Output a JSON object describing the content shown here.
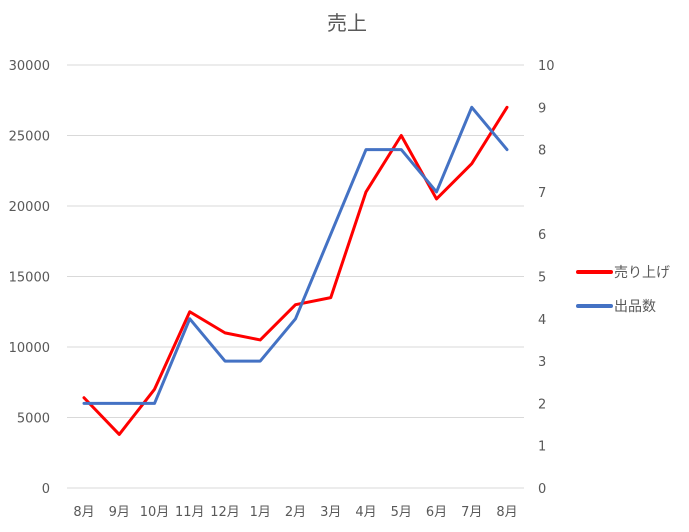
{
  "chart_data": {
    "type": "line",
    "title": "売上",
    "categories": [
      "8月",
      "9月",
      "10月",
      "11月",
      "12月",
      "1月",
      "2月",
      "3月",
      "4月",
      "5月",
      "6月",
      "7月",
      "8月"
    ],
    "y_left": {
      "min": 0,
      "max": 30000,
      "ticks": [
        "0",
        "5000",
        "10000",
        "15000",
        "20000",
        "25000",
        "30000"
      ]
    },
    "y_right": {
      "min": 0,
      "max": 10,
      "ticks": [
        "0",
        "1",
        "2",
        "3",
        "4",
        "5",
        "6",
        "7",
        "8",
        "9",
        "10"
      ]
    },
    "grid": true,
    "legend_position": "right",
    "series": [
      {
        "name": "売り上げ",
        "axis": "left",
        "color": "#ff0000",
        "values": [
          6400,
          3800,
          7000,
          12500,
          11000,
          10500,
          13000,
          13500,
          21000,
          25000,
          20500,
          23000,
          27000
        ]
      },
      {
        "name": "出品数",
        "axis": "right",
        "color": "#4472c4",
        "values": [
          2,
          2,
          2,
          4,
          3,
          3,
          4,
          6,
          8,
          8,
          7,
          9,
          8
        ]
      }
    ]
  }
}
